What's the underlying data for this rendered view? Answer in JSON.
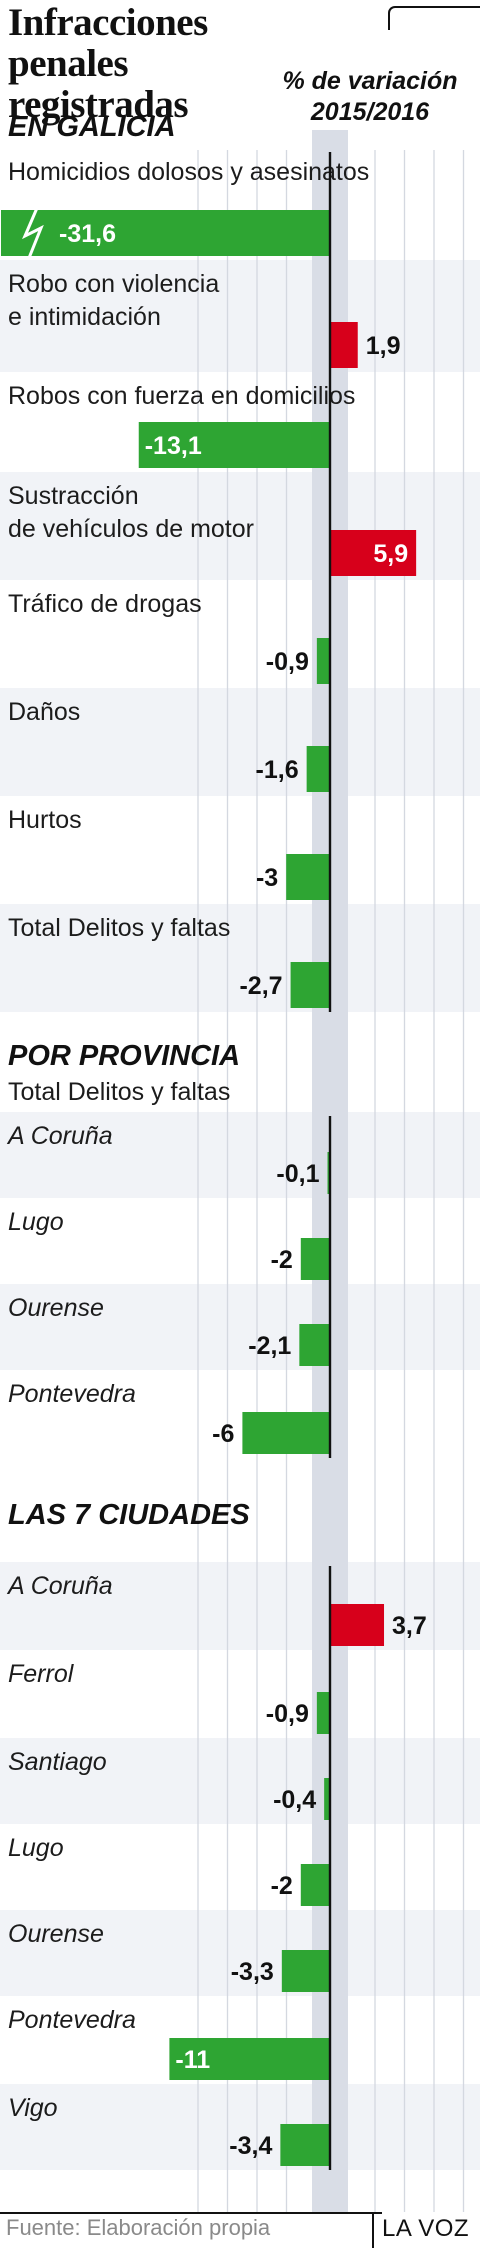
{
  "title": "Infracciones penales registradas",
  "subtitle": "% de variación 2015/2016",
  "footer": {
    "source": "Fuente: Elaboración propia",
    "brand": "LA VOZ"
  },
  "colors": {
    "positive": "#d7001b",
    "negative": "#2ea533",
    "band": "#f1f3f7",
    "grid": "#d4d8e0",
    "zero_band": "#d9dde6",
    "axis": "#111111"
  },
  "chart_data": {
    "type": "bar",
    "orientation": "horizontal",
    "title": "Infracciones penales registradas",
    "subtitle": "% de variación 2015/2016",
    "grid": true,
    "sections": [
      {
        "title": "EN GALICIA",
        "categories": [
          "Homicidios dolosos y asesinatos",
          "Robo con violencia\ne intimidación",
          "Robos con fuerza en domicilios",
          "Sustracción\nde vehículos de motor",
          "Tráfico de drogas",
          "Daños",
          "Hurtos",
          "Total Delitos y faltas"
        ],
        "values": [
          -31.6,
          1.9,
          -13.1,
          5.9,
          -0.9,
          -1.6,
          -3,
          -2.7
        ],
        "value_labels": [
          "-31,6",
          "1,9",
          "-13,1",
          "5,9",
          "-0,9",
          "-1,6",
          "-3",
          "-2,7"
        ],
        "axis_break": [
          true,
          false,
          false,
          false,
          false,
          false,
          false,
          false
        ]
      },
      {
        "title": "POR PROVINCIA",
        "subtitle": "Total Delitos y faltas",
        "categories": [
          "A Coruña",
          "Lugo",
          "Ourense",
          "Pontevedra"
        ],
        "values": [
          -0.1,
          -2,
          -2.1,
          -6
        ],
        "value_labels": [
          "-0,1",
          "-2",
          "-2,1",
          "-6"
        ]
      },
      {
        "title": "LAS 7 CIUDADES",
        "categories": [
          "A Coruña",
          "Ferrol",
          "Santiago",
          "Lugo",
          "Ourense",
          "Pontevedra",
          "Vigo"
        ],
        "values": [
          3.7,
          -0.9,
          -0.4,
          -2,
          -3.3,
          -11,
          -3.4
        ],
        "value_labels": [
          "3,7",
          "-0,9",
          "-0,4",
          "-2",
          "-3,3",
          "-11",
          "-3,4"
        ]
      }
    ]
  }
}
